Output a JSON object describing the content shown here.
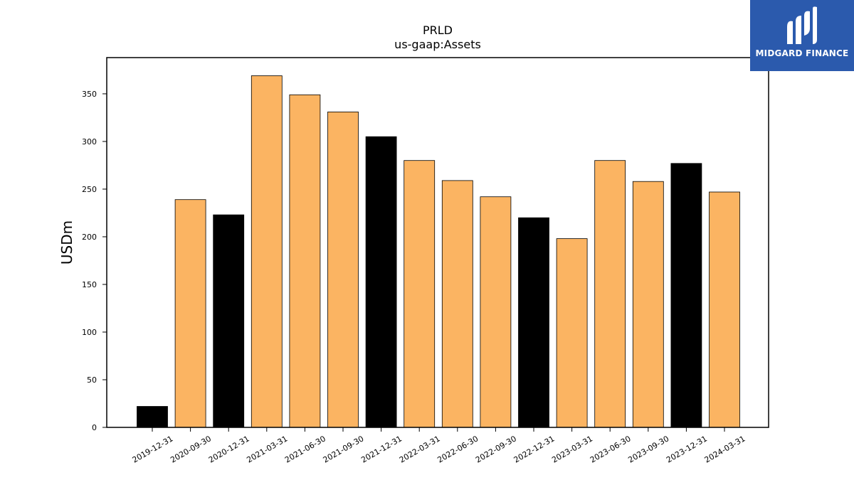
{
  "brand": {
    "name": "MIDGARD FINANCE",
    "bg_color": "#2b5aad"
  },
  "chart_data": {
    "type": "bar",
    "title": "PRLD",
    "subtitle": "us-gaap:Assets",
    "xlabel": "",
    "ylabel": "USDm",
    "ylim": [
      0,
      388
    ],
    "yticks": [
      0,
      50,
      100,
      150,
      200,
      250,
      300,
      350
    ],
    "grid": false,
    "categories": [
      "2019-12-31",
      "2020-09-30",
      "2020-12-31",
      "2021-03-31",
      "2021-06-30",
      "2021-09-30",
      "2021-12-31",
      "2022-03-31",
      "2022-06-30",
      "2022-09-30",
      "2022-12-31",
      "2023-03-31",
      "2023-06-30",
      "2023-09-30",
      "2023-12-31",
      "2024-03-31"
    ],
    "values": [
      22,
      239,
      223,
      369,
      349,
      331,
      305,
      280,
      259,
      242,
      220,
      198,
      280,
      258,
      277,
      247
    ],
    "bar_colors": [
      "#000000",
      "#fbb462",
      "#000000",
      "#fbb462",
      "#fbb462",
      "#fbb462",
      "#000000",
      "#fbb462",
      "#fbb462",
      "#fbb462",
      "#000000",
      "#fbb462",
      "#fbb462",
      "#fbb462",
      "#000000",
      "#fbb462"
    ],
    "colors": {
      "quarter": "#fbb462",
      "year_end": "#000000"
    }
  }
}
